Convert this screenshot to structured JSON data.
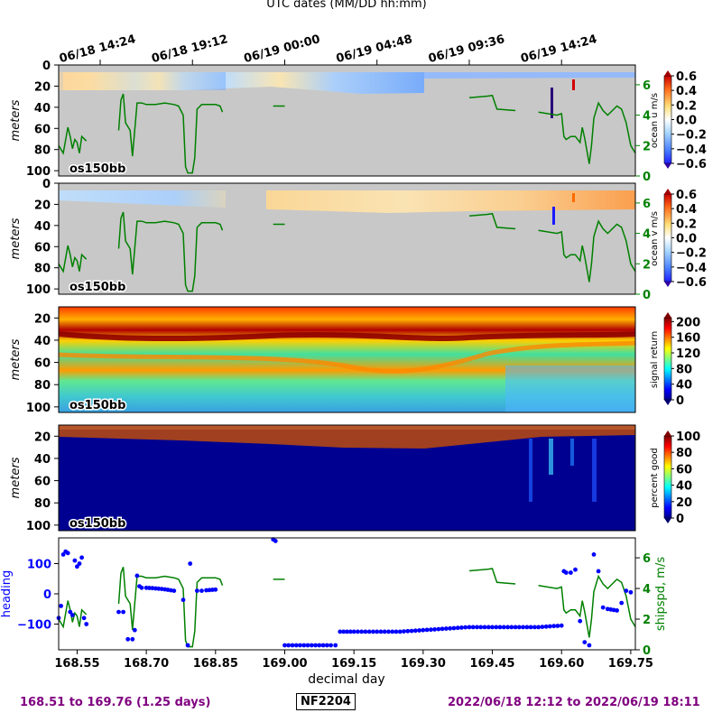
{
  "top_axis": {
    "title": "UTC dates (MM/DD hh:mm)",
    "ticks": [
      {
        "day": 168.6,
        "label": "06/18 14:24"
      },
      {
        "day": 168.8,
        "label": "06/18 19:12"
      },
      {
        "day": 169.0,
        "label": "06/19 00:00"
      },
      {
        "day": 169.2,
        "label": "06/19 04:48"
      },
      {
        "day": 169.4,
        "label": "06/19 09:36"
      },
      {
        "day": 169.6,
        "label": "06/19 14:24"
      }
    ]
  },
  "footer": {
    "left": "168.51 to 169.76 (1.25 days)",
    "center": "NF2204",
    "right": "2022/06/18 12:12 to 2022/06/19 18:11"
  },
  "chart_data": [
    {
      "type": "heatmap",
      "id": "ocean_u",
      "instrument_label": "os150bb",
      "ylabel": "meters",
      "y_ticks": [
        0,
        20,
        40,
        60,
        80,
        100
      ],
      "ylim": [
        105,
        0
      ],
      "colorbar": {
        "label": "ocean u m/s",
        "range": [
          -0.6,
          0.6
        ],
        "ticks": [
          "0.6",
          "0.4",
          "0.2",
          "0.0",
          "−0.2",
          "−0.4",
          "−0.6"
        ],
        "colormap": "bwr"
      },
      "overlay": {
        "name": "ship speed",
        "color": "#008000",
        "axis_ticks": [
          "0",
          "2",
          "4",
          "6"
        ],
        "axis_range": [
          0,
          7.3
        ]
      }
    },
    {
      "type": "heatmap",
      "id": "ocean_v",
      "instrument_label": "os150bb",
      "ylabel": "meters",
      "y_ticks": [
        0,
        20,
        40,
        60,
        80,
        100
      ],
      "ylim": [
        105,
        0
      ],
      "colorbar": {
        "label": "ocean v m/s",
        "range": [
          -0.6,
          0.6
        ],
        "ticks": [
          "0.6",
          "0.4",
          "0.2",
          "0.0",
          "−0.2",
          "−0.4",
          "−0.6"
        ],
        "colormap": "bwr"
      },
      "overlay": {
        "name": "ship speed",
        "color": "#008000",
        "axis_ticks": [
          "0",
          "2",
          "4",
          "6"
        ],
        "axis_range": [
          0,
          7.3
        ]
      }
    },
    {
      "type": "heatmap",
      "id": "signal_return",
      "instrument_label": "os150bb",
      "ylabel": "meters",
      "y_ticks": [
        20,
        40,
        60,
        80,
        100
      ],
      "ylim": [
        105,
        10
      ],
      "colorbar": {
        "label": "signal return",
        "range": [
          0,
          210
        ],
        "ticks": [
          "200",
          "160",
          "120",
          "80",
          "40",
          "0"
        ],
        "colormap": "jet"
      }
    },
    {
      "type": "heatmap",
      "id": "percent_good",
      "instrument_label": "os150bb",
      "ylabel": "meters",
      "y_ticks": [
        20,
        40,
        60,
        80,
        100
      ],
      "ylim": [
        105,
        10
      ],
      "colorbar": {
        "label": "percent good",
        "range": [
          0,
          100
        ],
        "ticks": [
          "100",
          "80",
          "60",
          "40",
          "20",
          "0"
        ],
        "colormap": "jet"
      }
    },
    {
      "type": "scatter",
      "id": "heading_shipspd",
      "xlabel": "decimal day",
      "x_ticks": [
        "168.55",
        "168.70",
        "168.85",
        "169.00",
        "169.15",
        "169.30",
        "169.45",
        "169.60",
        "169.75"
      ],
      "xlim": [
        168.51,
        169.76
      ],
      "left_axis": {
        "label": "heading",
        "color": "#0000ff",
        "ticks": [
          "100",
          "0",
          "−100"
        ],
        "range": [
          -185,
          185
        ]
      },
      "right_axis": {
        "label": "shipspd, m/s",
        "color": "#008000",
        "ticks": [
          "6",
          "4",
          "2",
          "0"
        ],
        "range": [
          0,
          7.3
        ]
      },
      "shipspd_series": [
        [
          168.51,
          2.0
        ],
        [
          168.52,
          1.5
        ],
        [
          168.53,
          3.2
        ],
        [
          168.535,
          2.6
        ],
        [
          168.54,
          1.8
        ],
        [
          168.545,
          2.4
        ],
        [
          168.55,
          2.2
        ],
        [
          168.555,
          1.5
        ],
        [
          168.56,
          2.6
        ],
        [
          168.57,
          2.3
        ],
        [
          168.64,
          3.0
        ],
        [
          168.645,
          5.0
        ],
        [
          168.65,
          5.4
        ],
        [
          168.655,
          3.5
        ],
        [
          168.665,
          3.0
        ],
        [
          168.67,
          1.3
        ],
        [
          168.68,
          4.8
        ],
        [
          168.69,
          4.8
        ],
        [
          168.7,
          4.7
        ],
        [
          168.72,
          4.7
        ],
        [
          168.74,
          4.8
        ],
        [
          168.76,
          4.7
        ],
        [
          168.77,
          4.6
        ],
        [
          168.78,
          4.0
        ],
        [
          168.785,
          0.6
        ],
        [
          168.79,
          0.2
        ],
        [
          168.8,
          0.2
        ],
        [
          168.805,
          1.2
        ],
        [
          168.81,
          4.4
        ],
        [
          168.82,
          4.7
        ],
        [
          168.84,
          4.7
        ],
        [
          168.85,
          4.7
        ],
        [
          168.86,
          4.6
        ],
        [
          168.865,
          4.2
        ],
        [
          168.975,
          4.6
        ],
        [
          169.0,
          4.6
        ],
        [
          169.05,
          4.6
        ],
        [
          169.1,
          4.7
        ],
        [
          169.15,
          4.8
        ],
        [
          169.2,
          4.9
        ],
        [
          169.25,
          4.95
        ],
        [
          169.3,
          5.0
        ],
        [
          169.35,
          5.05
        ],
        [
          169.4,
          5.15
        ],
        [
          169.44,
          5.25
        ],
        [
          169.45,
          5.3
        ],
        [
          169.46,
          4.4
        ],
        [
          169.5,
          4.3
        ],
        [
          169.55,
          4.2
        ],
        [
          169.59,
          4.0
        ],
        [
          169.6,
          4.1
        ],
        [
          169.605,
          2.6
        ],
        [
          169.61,
          2.4
        ],
        [
          169.62,
          2.6
        ],
        [
          169.63,
          2.6
        ],
        [
          169.64,
          2.2
        ],
        [
          169.645,
          3.2
        ],
        [
          169.65,
          2.5
        ],
        [
          169.66,
          0.8
        ],
        [
          169.665,
          2.0
        ],
        [
          169.67,
          3.8
        ],
        [
          169.68,
          4.8
        ],
        [
          169.69,
          4.3
        ],
        [
          169.7,
          4.0
        ],
        [
          169.72,
          4.6
        ],
        [
          169.73,
          4.4
        ],
        [
          169.74,
          3.5
        ],
        [
          169.75,
          2.0
        ],
        [
          169.76,
          1.5
        ]
      ],
      "heading_series": [
        [
          168.51,
          -80
        ],
        [
          168.515,
          -40
        ],
        [
          168.52,
          130
        ],
        [
          168.525,
          140
        ],
        [
          168.53,
          135
        ],
        [
          168.535,
          -60
        ],
        [
          168.54,
          -70
        ],
        [
          168.545,
          110
        ],
        [
          168.55,
          90
        ],
        [
          168.555,
          100
        ],
        [
          168.56,
          120
        ],
        [
          168.565,
          -80
        ],
        [
          168.57,
          -100
        ],
        [
          168.64,
          -60
        ],
        [
          168.65,
          -60
        ],
        [
          168.66,
          -150
        ],
        [
          168.67,
          -150
        ],
        [
          168.675,
          -120
        ],
        [
          168.68,
          60
        ],
        [
          168.685,
          25
        ],
        [
          168.69,
          20
        ],
        [
          168.7,
          20
        ],
        [
          168.72,
          18
        ],
        [
          168.74,
          15
        ],
        [
          168.76,
          10
        ],
        [
          168.78,
          -20
        ],
        [
          168.79,
          -170
        ],
        [
          168.795,
          100
        ],
        [
          168.81,
          10
        ],
        [
          168.82,
          10
        ],
        [
          168.83,
          12
        ],
        [
          168.85,
          14
        ],
        [
          168.975,
          180
        ],
        [
          168.98,
          175
        ],
        [
          169.0,
          -170
        ],
        [
          169.05,
          -170
        ],
        [
          169.1,
          -170
        ],
        [
          169.11,
          -170
        ],
        [
          169.12,
          -125
        ],
        [
          169.15,
          -125
        ],
        [
          169.2,
          -125
        ],
        [
          169.25,
          -125
        ],
        [
          169.3,
          -120
        ],
        [
          169.35,
          -115
        ],
        [
          169.4,
          -110
        ],
        [
          169.45,
          -110
        ],
        [
          169.5,
          -110
        ],
        [
          169.55,
          -110
        ],
        [
          169.6,
          -105
        ],
        [
          169.605,
          75
        ],
        [
          169.61,
          70
        ],
        [
          169.62,
          70
        ],
        [
          169.63,
          80
        ],
        [
          169.64,
          -90
        ],
        [
          169.65,
          -160
        ],
        [
          169.66,
          -170
        ],
        [
          169.67,
          130
        ],
        [
          169.68,
          75
        ],
        [
          169.69,
          -45
        ],
        [
          169.7,
          -50
        ],
        [
          169.72,
          -55
        ],
        [
          169.73,
          -30
        ],
        [
          169.74,
          10
        ],
        [
          169.75,
          5
        ]
      ]
    }
  ]
}
